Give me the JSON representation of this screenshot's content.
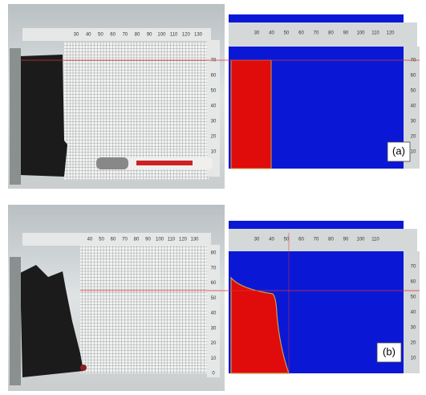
{
  "panels": [
    {
      "label": "(a)",
      "photo_top_ruler": [
        30,
        40,
        50,
        60,
        70,
        80,
        90,
        100,
        110,
        120,
        130
      ],
      "photo_side_ruler": [
        10,
        20,
        30,
        40,
        50,
        60,
        70
      ],
      "sim_top_ruler": [
        30,
        40,
        50,
        60,
        70,
        80,
        90,
        100,
        110,
        120
      ],
      "sim_side_ruler": [
        10,
        20,
        30,
        40,
        50,
        60,
        70
      ]
    },
    {
      "label": "(b)",
      "photo_top_ruler": [
        40,
        50,
        60,
        70,
        80,
        90,
        100,
        110,
        120,
        130
      ],
      "photo_side_ruler": [
        0,
        10,
        20,
        30,
        40,
        50,
        60,
        70,
        80
      ],
      "sim_top_ruler": [
        30,
        40,
        50,
        60,
        70,
        80,
        90,
        100,
        110
      ],
      "sim_side_ruler": [
        10,
        20,
        30,
        40,
        50,
        60,
        70
      ]
    }
  ]
}
